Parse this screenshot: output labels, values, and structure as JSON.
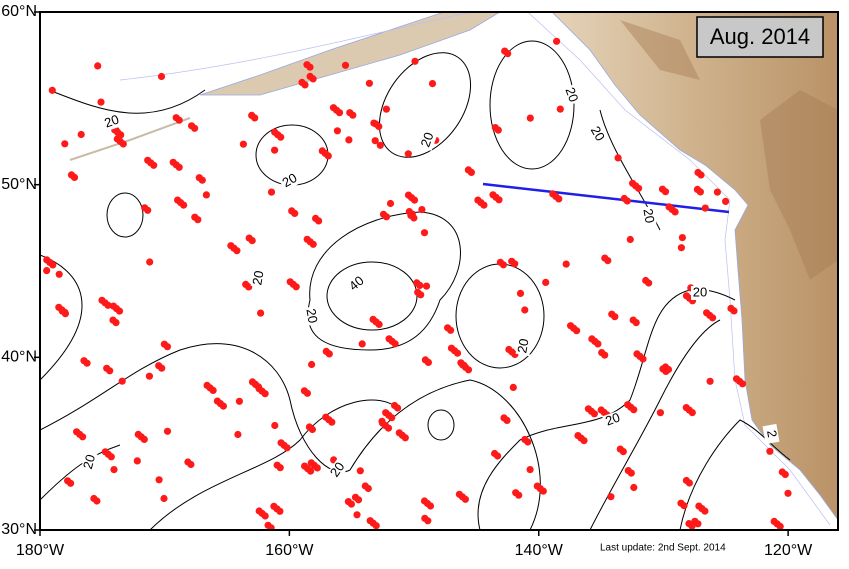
{
  "map": {
    "title": "Aug. 2014",
    "footer": "Last update: 2nd Sept. 2014",
    "xlim": [
      -180,
      -116
    ],
    "ylim": [
      30,
      60
    ],
    "xticks": [
      {
        "value": -180,
        "label": "180°W"
      },
      {
        "value": -160,
        "label": "160°W"
      },
      {
        "value": -140,
        "label": "140°W"
      },
      {
        "value": -120,
        "label": "120°W"
      }
    ],
    "yticks": [
      {
        "value": 30,
        "label": "30°N"
      },
      {
        "value": 40,
        "label": "40°N"
      },
      {
        "value": 50,
        "label": "50°N"
      },
      {
        "value": 60,
        "label": "60°N"
      }
    ],
    "contour_labels": [
      "20",
      "20",
      "20",
      "20",
      "20",
      "20",
      "20",
      "20",
      "40",
      "20",
      "20",
      "20",
      "20",
      "20",
      "2"
    ]
  }
}
